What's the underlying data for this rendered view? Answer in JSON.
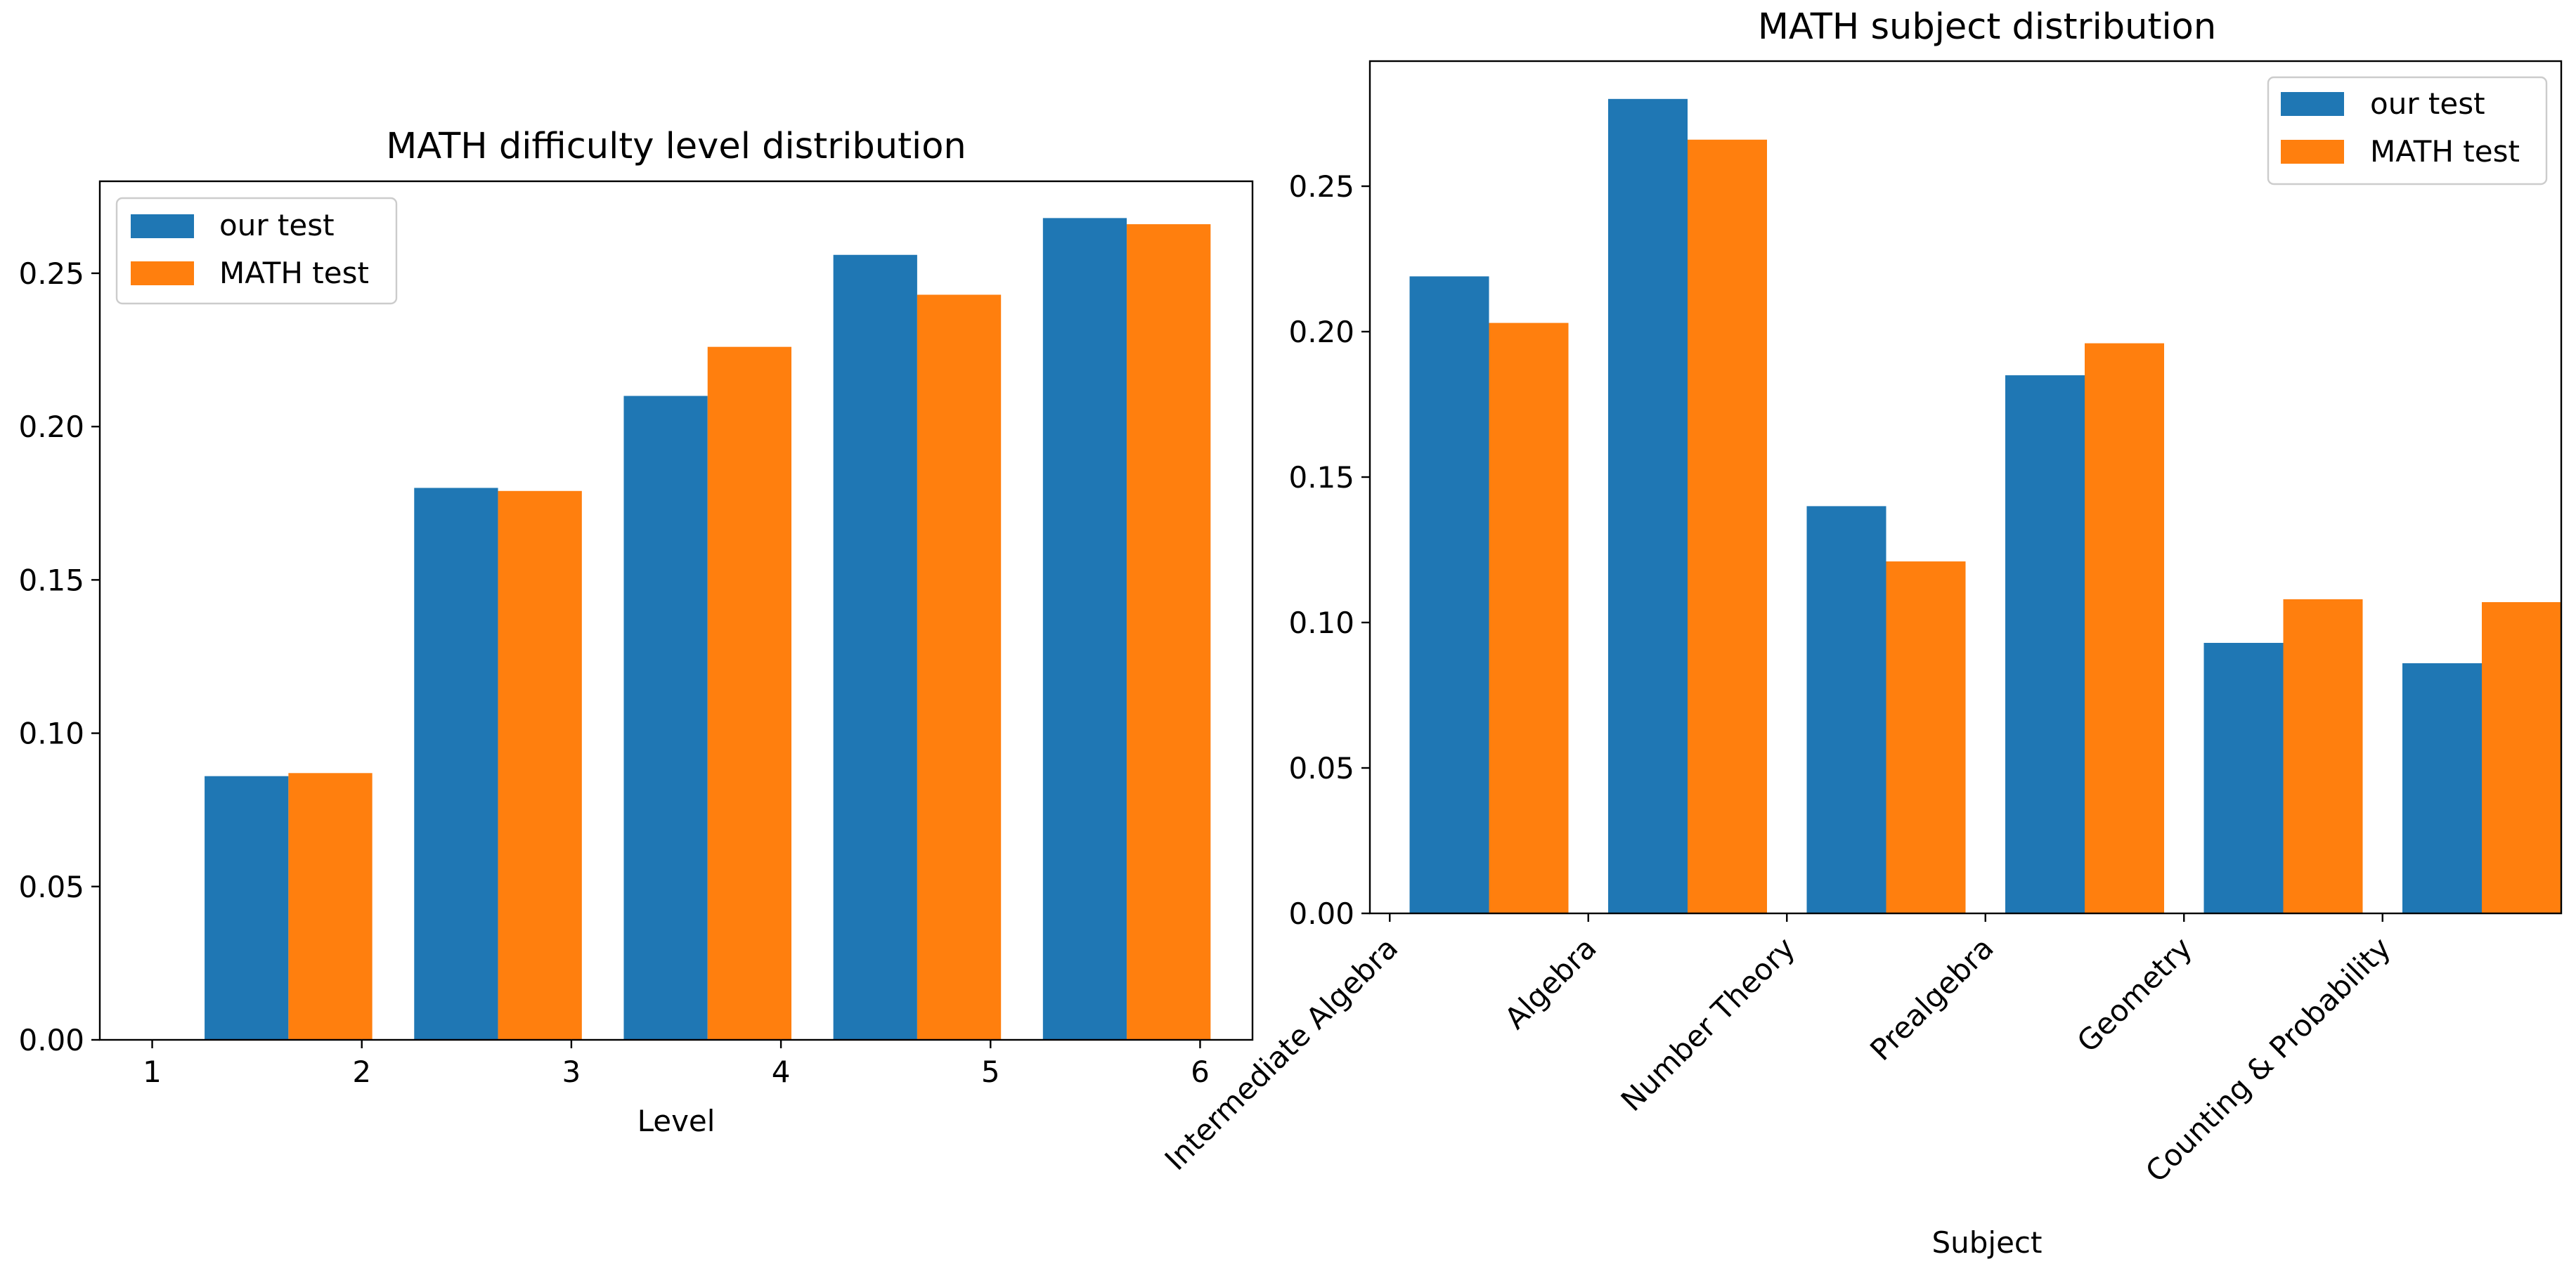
{
  "colors": {
    "our_test": "#1f77b4",
    "math_test": "#ff7f0e"
  },
  "chart_data": [
    {
      "type": "bar",
      "title": "MATH difficulty level distribution",
      "xlabel": "Level",
      "ylabel": "",
      "x_ticks": [
        1,
        2,
        3,
        4,
        5,
        6
      ],
      "categories": [
        1,
        2,
        3,
        4,
        5
      ],
      "ylim": [
        0,
        0.28
      ],
      "y_ticks": [
        "0.00",
        "0.05",
        "0.10",
        "0.15",
        "0.20",
        "0.25"
      ],
      "legend": {
        "placement": "upper-left",
        "entries": [
          "our test",
          "MATH test"
        ]
      },
      "series": [
        {
          "name": "our test",
          "values": [
            0.086,
            0.18,
            0.21,
            0.256,
            0.268
          ]
        },
        {
          "name": "MATH test",
          "values": [
            0.087,
            0.179,
            0.226,
            0.243,
            0.266
          ]
        }
      ]
    },
    {
      "type": "bar",
      "title": "MATH subject distribution",
      "xlabel": "Subject",
      "ylabel": "",
      "categories": [
        "Intermediate Algebra",
        "Algebra",
        "Number Theory",
        "Prealgebra",
        "Geometry",
        "Counting & Probability"
      ],
      "ylim": [
        0,
        0.293
      ],
      "y_ticks": [
        "0.00",
        "0.05",
        "0.10",
        "0.15",
        "0.20",
        "0.25"
      ],
      "legend": {
        "placement": "upper-right",
        "entries": [
          "our test",
          "MATH test"
        ]
      },
      "series": [
        {
          "name": "our test",
          "values": [
            0.219,
            0.28,
            0.14,
            0.185,
            0.093,
            0.086
          ]
        },
        {
          "name": "MATH test",
          "values": [
            0.203,
            0.266,
            0.121,
            0.196,
            0.108,
            0.107
          ]
        }
      ]
    }
  ]
}
